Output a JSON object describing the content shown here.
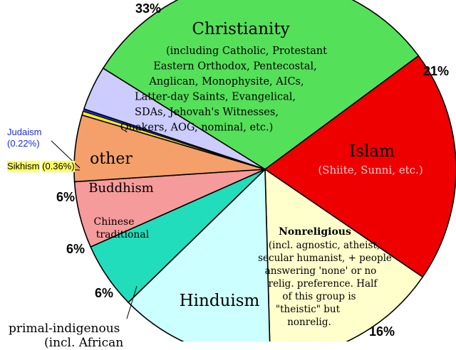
{
  "chart_data": {
    "type": "pie",
    "slices": [
      {
        "name": "Christianity",
        "value": 33,
        "pct_label": "33%",
        "color": "#55e05a",
        "desc": [
          "(including Catholic, Protestant",
          "Eastern Orthodox, Pentecostal,",
          "Anglican, Monophysite, AICs,",
          "Latter-day Saints, Evangelical,",
          "SDAs, Jehovah's Witnesses,",
          "Quakers, AOG, nominal, etc.)"
        ]
      },
      {
        "name": "Islam",
        "value": 21,
        "pct_label": "21%",
        "color": "#ee0000",
        "desc": [
          "(Shiite, Sunni, etc.)"
        ]
      },
      {
        "name": "Nonreligious",
        "value": 16,
        "pct_label": "16%",
        "color": "#ffffcc",
        "desc": [
          "(incl. agnostic, atheist,",
          "secular humanist, + people",
          "answering 'none' or no",
          "relig. preference. Half",
          "of this group is",
          "\"theistic\" but",
          "nonrelig."
        ]
      },
      {
        "name": "Hinduism",
        "value": 14,
        "pct_label": "",
        "color": "#ccffff",
        "desc": []
      },
      {
        "name": "primal-indigenous",
        "value": 6,
        "pct_label": "6%",
        "color": "#22ddbb",
        "desc": []
      },
      {
        "name": "Chinese traditional",
        "value": 6,
        "pct_label": "6%",
        "color": "#f59b9b",
        "desc": []
      },
      {
        "name": "Buddhism",
        "value": 6,
        "pct_label": "6%",
        "color": "#f5a06a",
        "desc": []
      },
      {
        "name": "Sikhism",
        "value": 0.36,
        "pct_label": "(0.36%)",
        "color": "#ffee00",
        "desc": []
      },
      {
        "name": "Judaism",
        "value": 0.22,
        "pct_label": "(0.22%)",
        "color": "#1a2ae6",
        "desc": []
      },
      {
        "name": "other",
        "value": 4,
        "pct_label": "",
        "color": "#ccccff",
        "desc": []
      }
    ],
    "extra_labels": {
      "judaism_name": "Judaism",
      "judaism_pct": "(0.22%)",
      "sikhism_name": "Sikhism",
      "sikhism_pct": "(0.36%)",
      "primal_line1": "primal-indigenous",
      "primal_line2": "(incl. African"
    }
  }
}
